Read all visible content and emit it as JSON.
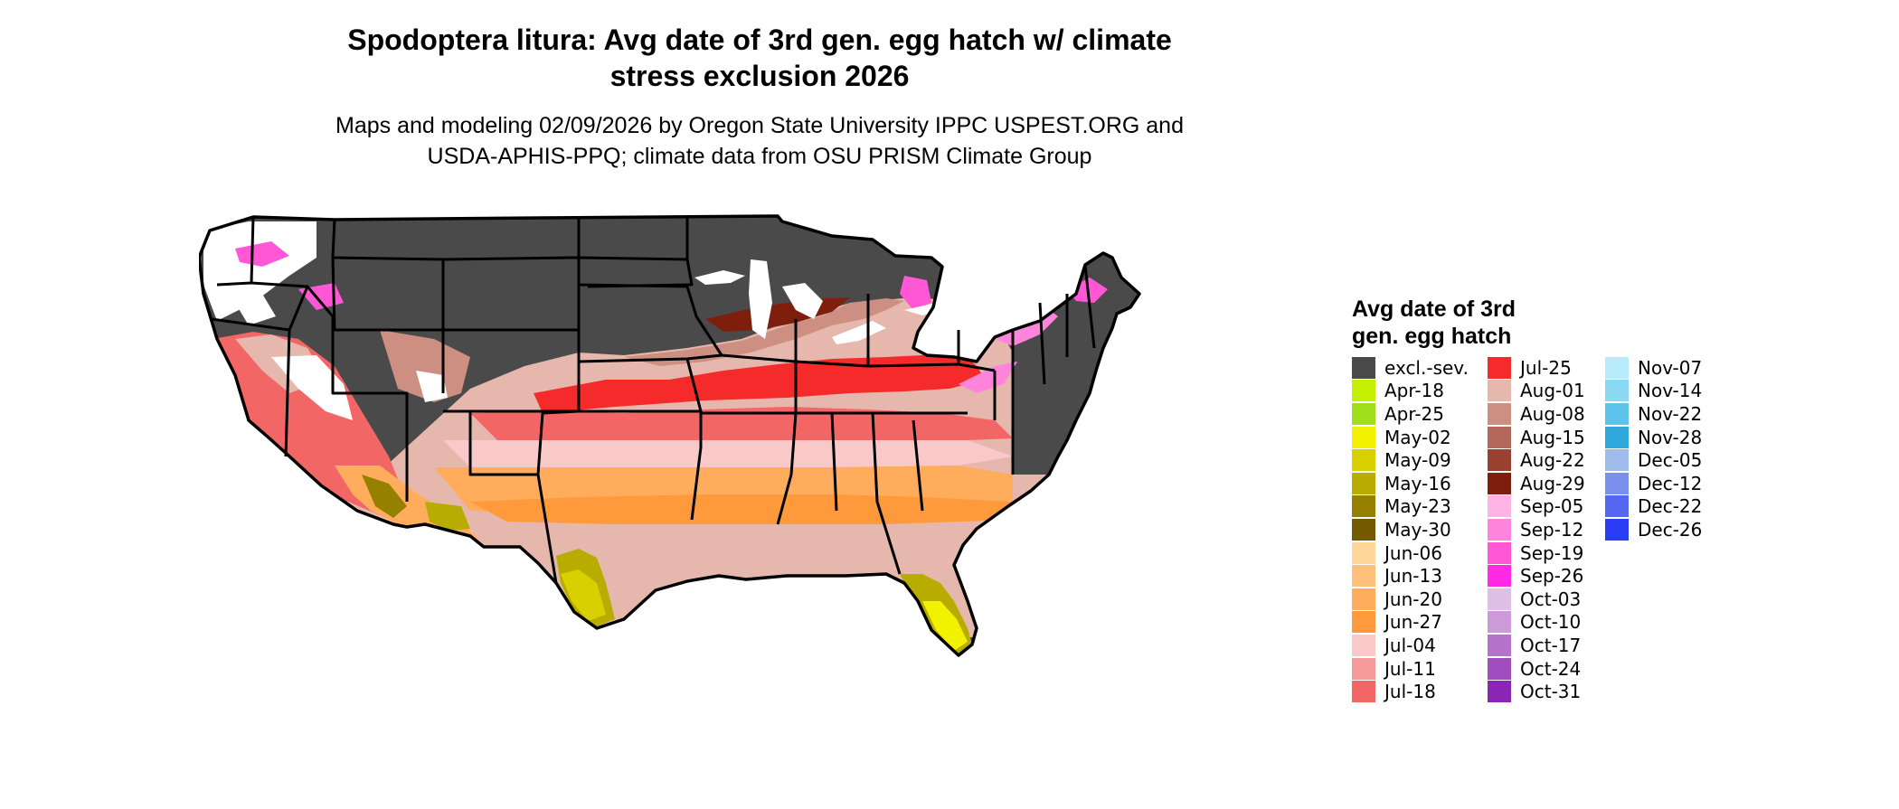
{
  "title_line1": "Spodoptera litura: Avg date of 3rd gen. egg hatch w/ climate",
  "title_line2": "stress exclusion 2026",
  "subtitle_line1": "Maps and modeling 02/09/2026 by Oregon State University IPPC USPEST.ORG and",
  "subtitle_line2": "USDA-APHIS-PPQ; climate data from OSU PRISM Climate Group",
  "legend": {
    "title_line1": "Avg date of 3rd",
    "title_line2": "gen. egg hatch",
    "columns": [
      [
        {
          "label": "excl.-sev.",
          "color": "#4a4a4a"
        },
        {
          "label": "Apr-18",
          "color": "#c4f000"
        },
        {
          "label": "Apr-25",
          "color": "#9fe01a"
        },
        {
          "label": "May-02",
          "color": "#f2f200"
        },
        {
          "label": "May-09",
          "color": "#d8d000"
        },
        {
          "label": "May-16",
          "color": "#b8ac00"
        },
        {
          "label": "May-23",
          "color": "#968000"
        },
        {
          "label": "May-30",
          "color": "#735a00"
        },
        {
          "label": "Jun-06",
          "color": "#ffd699"
        },
        {
          "label": "Jun-13",
          "color": "#ffc07a"
        },
        {
          "label": "Jun-20",
          "color": "#ffad5c"
        },
        {
          "label": "Jun-27",
          "color": "#ff9a3c"
        },
        {
          "label": "Jul-04",
          "color": "#f9c8c8"
        },
        {
          "label": "Jul-11",
          "color": "#f59a9a"
        },
        {
          "label": "Jul-18",
          "color": "#f26666"
        }
      ],
      [
        {
          "label": "Jul-25",
          "color": "#f52a2a"
        },
        {
          "label": "Aug-01",
          "color": "#e6b8ad"
        },
        {
          "label": "Aug-08",
          "color": "#cc8f82"
        },
        {
          "label": "Aug-15",
          "color": "#b3675a"
        },
        {
          "label": "Aug-22",
          "color": "#994030"
        },
        {
          "label": "Aug-29",
          "color": "#7e1e0c"
        },
        {
          "label": "Sep-05",
          "color": "#ffb3e6"
        },
        {
          "label": "Sep-12",
          "color": "#ff85dc"
        },
        {
          "label": "Sep-19",
          "color": "#ff57d6"
        },
        {
          "label": "Sep-26",
          "color": "#ff29e6"
        },
        {
          "label": "Oct-03",
          "color": "#e0bfe6"
        },
        {
          "label": "Oct-10",
          "color": "#cc99d9"
        },
        {
          "label": "Oct-17",
          "color": "#b673cc"
        },
        {
          "label": "Oct-24",
          "color": "#a04dbf"
        },
        {
          "label": "Oct-31",
          "color": "#8a26b3"
        }
      ],
      [
        {
          "label": "Nov-07",
          "color": "#b8ecfa"
        },
        {
          "label": "Nov-14",
          "color": "#8ad8f2"
        },
        {
          "label": "Nov-22",
          "color": "#5cc4eb"
        },
        {
          "label": "Nov-28",
          "color": "#2ea8dd"
        },
        {
          "label": "Dec-05",
          "color": "#9fbcea"
        },
        {
          "label": "Dec-12",
          "color": "#7a90ec"
        },
        {
          "label": "Dec-22",
          "color": "#5566f0"
        },
        {
          "label": "Dec-26",
          "color": "#2a3cf5"
        }
      ]
    ]
  }
}
